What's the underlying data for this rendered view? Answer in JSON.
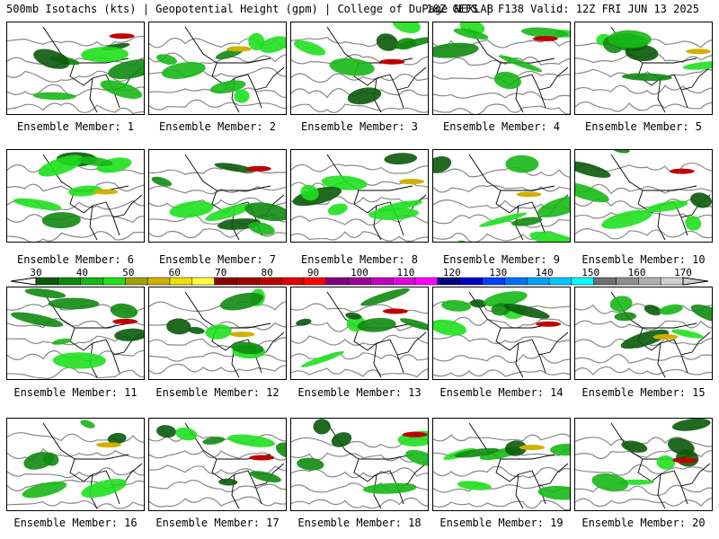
{
  "header": {
    "left": "500mb Isotachs (kts) | Geopotential Height (gpm) | College of DuPage NEXLAB",
    "right": "18Z GEFS | F138 Valid: 12Z FRI JUN 13 2025"
  },
  "caption_prefix": "Ensemble Member:",
  "members": [
    "1",
    "2",
    "3",
    "4",
    "5",
    "6",
    "7",
    "8",
    "9",
    "10",
    "11",
    "12",
    "13",
    "14",
    "15",
    "16",
    "17",
    "18",
    "19",
    "20"
  ],
  "colorbar": {
    "labels": [
      "30",
      "40",
      "50",
      "60",
      "70",
      "80",
      "90",
      "100",
      "110",
      "120",
      "130",
      "140",
      "150",
      "160",
      "170"
    ],
    "colors": [
      "#0a5a0a",
      "#0f8a0f",
      "#16b816",
      "#1fe01f",
      "#a0a000",
      "#d0b000",
      "#f0e000",
      "#ffff40",
      "#8b0000",
      "#a00000",
      "#c00000",
      "#e00000",
      "#ff0000",
      "#800080",
      "#9b009b",
      "#c000c0",
      "#e000e0",
      "#ff00ff",
      "#000080",
      "#0000c0",
      "#0040ff",
      "#0070ff",
      "#00a0ff",
      "#00c8ff",
      "#00ffff",
      "#707070",
      "#8f8f8f",
      "#b0b0b0",
      "#d0d0d0"
    ]
  }
}
